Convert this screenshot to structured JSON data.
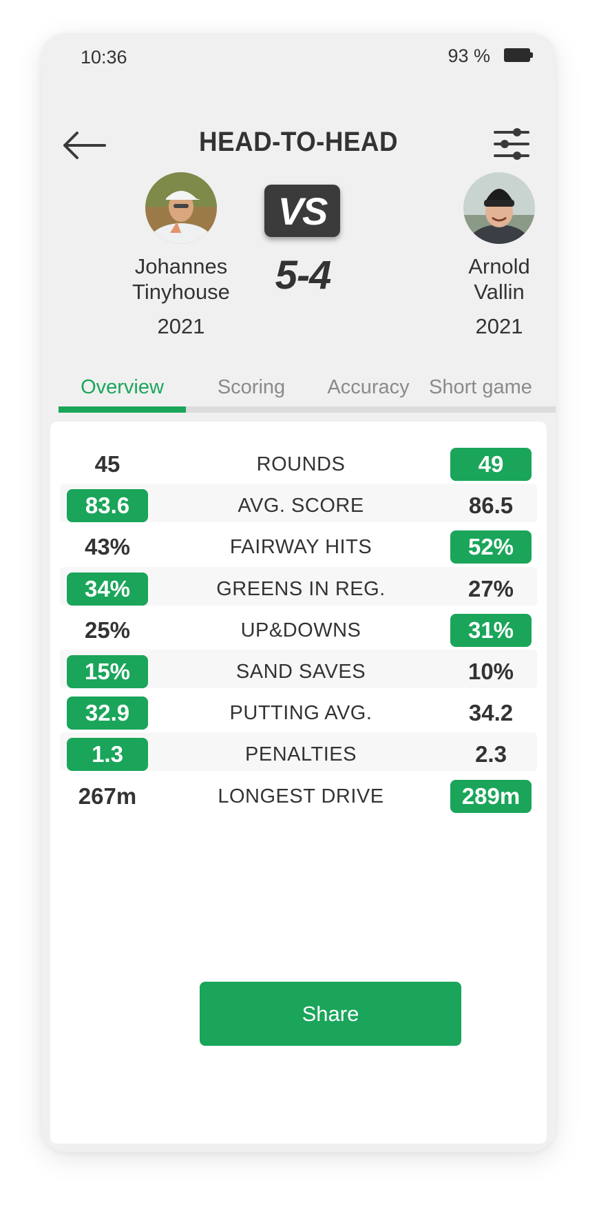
{
  "status_bar": {
    "time": "10:36",
    "battery": "93 %"
  },
  "header": {
    "title": "HEAD-TO-HEAD"
  },
  "icons": {
    "back": "arrow-left-icon",
    "filter": "sliders-icon",
    "battery": "battery-icon"
  },
  "players": {
    "left": {
      "first_name": "Johannes",
      "last_name": "Tinyhouse",
      "year": "2021"
    },
    "right": {
      "first_name": "Arnold",
      "last_name": "Vallin",
      "year": "2021"
    }
  },
  "versus": {
    "label": "VS",
    "score": "5-4"
  },
  "tabs": [
    {
      "label": "Overview",
      "active": true
    },
    {
      "label": "Scoring",
      "active": false
    },
    {
      "label": "Accuracy",
      "active": false
    },
    {
      "label": "Short game",
      "active": false
    }
  ],
  "stats": [
    {
      "label": "ROUNDS",
      "left": "45",
      "right": "49",
      "winner": "right"
    },
    {
      "label": "AVG. SCORE",
      "left": "83.6",
      "right": "86.5",
      "winner": "left"
    },
    {
      "label": "FAIRWAY HITS",
      "left": "43%",
      "right": "52%",
      "winner": "right"
    },
    {
      "label": "GREENS IN REG.",
      "left": "34%",
      "right": "27%",
      "winner": "left"
    },
    {
      "label": "UP&DOWNS",
      "left": "25%",
      "right": "31%",
      "winner": "right"
    },
    {
      "label": "SAND SAVES",
      "left": "15%",
      "right": "10%",
      "winner": "left"
    },
    {
      "label": "PUTTING AVG.",
      "left": "32.9",
      "right": "34.2",
      "winner": "left"
    },
    {
      "label": "PENALTIES",
      "left": "1.3",
      "right": "2.3",
      "winner": "left"
    },
    {
      "label": "LONGEST DRIVE",
      "left": "267m",
      "right": "289m",
      "winner": "right"
    }
  ],
  "share": {
    "label": "Share"
  },
  "colors": {
    "accent": "#1aa55a",
    "text": "#333333",
    "muted": "#8a8a8a",
    "background": "#f0f0f0"
  }
}
